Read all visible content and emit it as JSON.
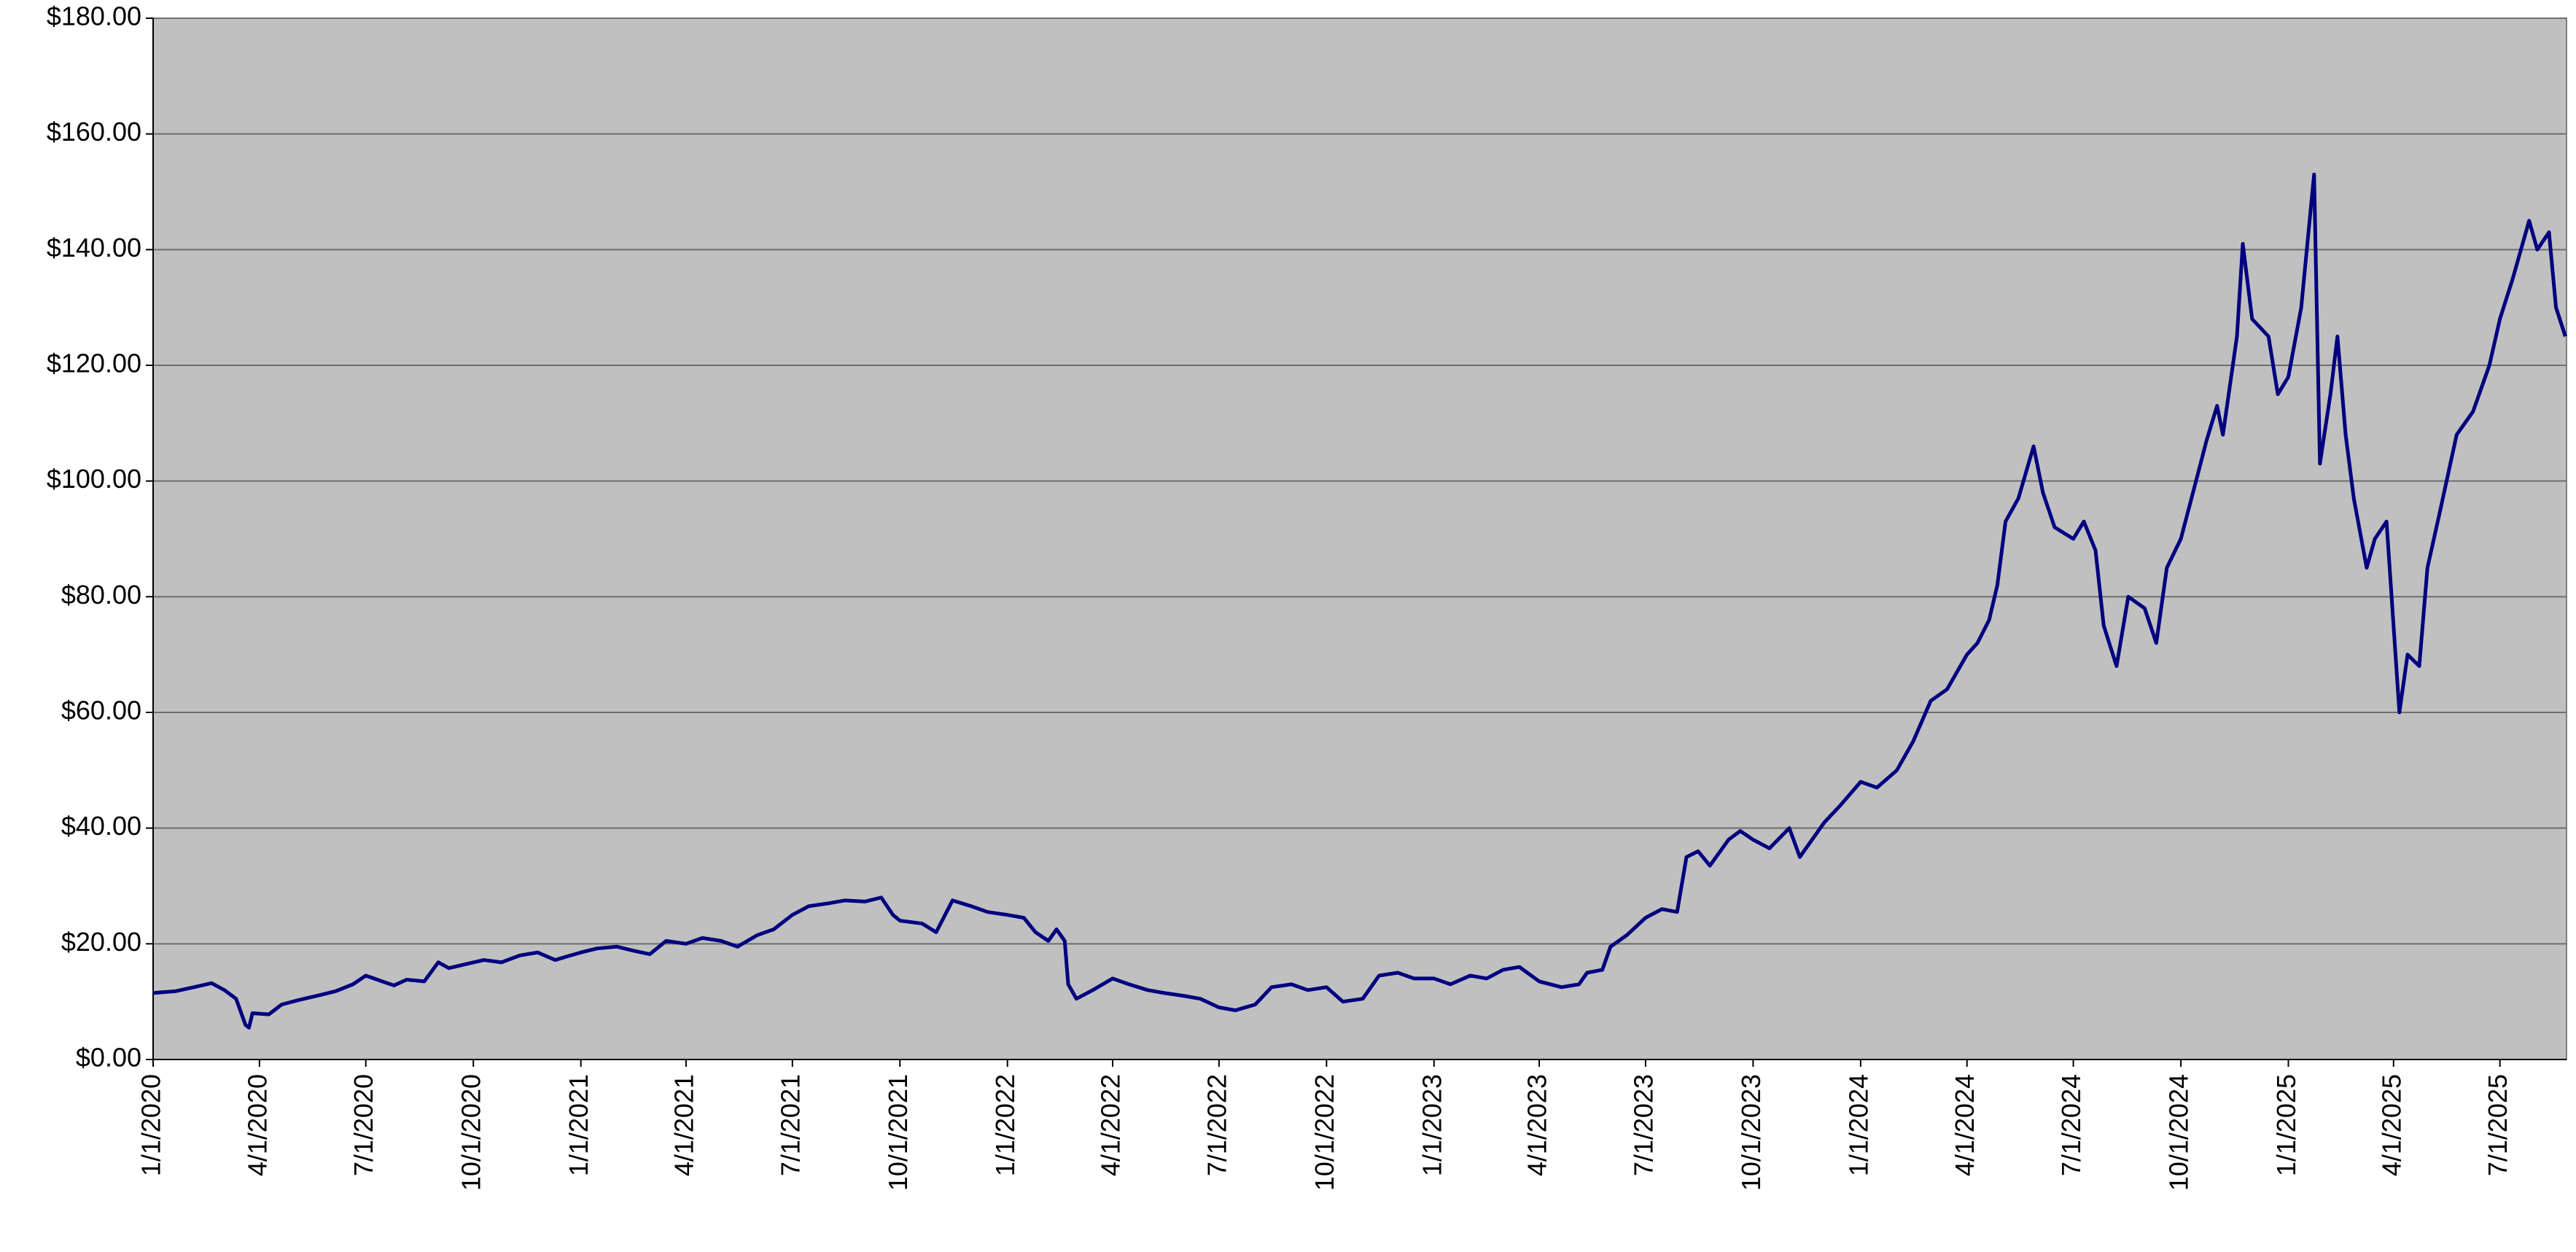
{
  "chart_data": {
    "type": "line",
    "grid": true,
    "x": [
      "1/1/2020",
      "1/20/2020",
      "2/5/2020",
      "2/20/2020",
      "3/2/2020",
      "3/12/2020",
      "3/20/2020",
      "3/23/2020",
      "3/26/2020",
      "4/9/2020",
      "4/20/2020",
      "5/5/2020",
      "5/20/2020",
      "6/5/2020",
      "6/20/2020",
      "7/1/2020",
      "7/15/2020",
      "7/25/2020",
      "8/5/2020",
      "8/20/2020",
      "9/1/2020",
      "9/10/2020",
      "9/25/2020",
      "10/10/2020",
      "10/25/2020",
      "11/10/2020",
      "11/25/2020",
      "12/10/2020",
      "12/20/2020",
      "1/1/2021",
      "1/15/2021",
      "2/1/2021",
      "2/15/2021",
      "3/1/2021",
      "3/15/2021",
      "4/1/2021",
      "4/15/2021",
      "5/1/2021",
      "5/15/2021",
      "6/1/2021",
      "6/15/2021",
      "7/1/2021",
      "7/15/2021",
      "8/1/2021",
      "8/15/2021",
      "9/1/2021",
      "9/15/2021",
      "9/25/2021",
      "10/1/2021",
      "10/20/2021",
      "11/1/2021",
      "11/15/2021",
      "12/1/2021",
      "12/15/2021",
      "1/1/2022",
      "1/15/2022",
      "1/25/2022",
      "2/5/2022",
      "2/12/2022",
      "2/19/2022",
      "2/22/2022",
      "3/1/2022",
      "3/15/2022",
      "4/1/2022",
      "4/15/2022",
      "5/1/2022",
      "5/15/2022",
      "6/1/2022",
      "6/15/2022",
      "7/1/2022",
      "7/15/2022",
      "8/1/2022",
      "8/15/2022",
      "9/1/2022",
      "9/15/2022",
      "10/1/2022",
      "10/15/2022",
      "11/1/2022",
      "11/15/2022",
      "12/1/2022",
      "12/15/2022",
      "1/1/2023",
      "1/15/2023",
      "2/1/2023",
      "2/15/2023",
      "3/1/2023",
      "3/15/2023",
      "4/1/2023",
      "4/20/2023",
      "5/5/2023",
      "5/12/2023",
      "5/25/2023",
      "6/1/2023",
      "6/15/2023",
      "7/1/2023",
      "7/15/2023",
      "7/28/2023",
      "8/5/2023",
      "8/15/2023",
      "8/25/2023",
      "9/10/2023",
      "9/20/2023",
      "10/1/2023",
      "10/15/2023",
      "11/1/2023",
      "11/10/2023",
      "12/1/2023",
      "12/15/2023",
      "1/1/2024",
      "1/15/2024",
      "2/1/2024",
      "2/15/2024",
      "3/1/2024",
      "3/15/2024",
      "4/1/2024",
      "4/10/2024",
      "4/20/2024",
      "4/27/2024",
      "5/4/2024",
      "5/15/2024",
      "5/28/2024",
      "6/5/2024",
      "6/15/2024",
      "7/1/2024",
      "7/10/2024",
      "7/20/2024",
      "7/27/2024",
      "8/7/2024",
      "8/17/2024",
      "8/31/2024",
      "9/10/2024",
      "9/19/2024",
      "10/1/2024",
      "10/14/2024",
      "10/23/2024",
      "11/1/2024",
      "11/6/2024",
      "11/18/2024",
      "11/23/2024",
      "12/1/2024",
      "12/15/2024",
      "12/23/2024",
      "1/1/2025",
      "1/12/2025",
      "1/23/2025",
      "1/28/2025",
      "2/6/2025",
      "2/12/2025",
      "2/19/2025",
      "2/26/2025",
      "3/9/2025",
      "3/16/2025",
      "3/26/2025",
      "4/2/2025",
      "4/6/2025",
      "4/13/2025",
      "4/23/2025",
      "4/30/2025",
      "5/11/2025",
      "5/25/2025",
      "6/8/2025",
      "6/22/2025",
      "7/1/2025",
      "7/12/2025",
      "7/26/2025",
      "8/2/2025",
      "8/12/2025",
      "8/18/2025",
      "8/26/2025"
    ],
    "series": [
      {
        "color": "#000080",
        "values": [
          11.5,
          11.8,
          12.5,
          13.2,
          12.0,
          10.5,
          6.0,
          5.5,
          8.0,
          7.8,
          9.5,
          10.3,
          11.0,
          11.8,
          13.0,
          14.5,
          13.5,
          12.8,
          13.8,
          13.5,
          16.8,
          15.8,
          16.5,
          17.2,
          16.8,
          18.0,
          18.5,
          17.2,
          17.8,
          18.5,
          19.2,
          19.5,
          18.8,
          18.2,
          20.5,
          20.0,
          21.0,
          20.5,
          19.5,
          21.5,
          22.5,
          25.0,
          26.5,
          27.0,
          27.5,
          27.3,
          28.0,
          25.0,
          24.0,
          23.5,
          22.0,
          27.5,
          26.5,
          25.5,
          25.0,
          24.5,
          22.0,
          20.5,
          22.5,
          20.5,
          13.0,
          10.5,
          12.0,
          14.0,
          13.0,
          12.0,
          11.5,
          11.0,
          10.5,
          9.0,
          8.5,
          9.5,
          12.5,
          13.0,
          12.0,
          12.5,
          10.0,
          10.5,
          14.5,
          15.0,
          14.0,
          14.0,
          13.0,
          14.5,
          14.0,
          15.5,
          16.0,
          13.5,
          12.5,
          13.0,
          15.0,
          15.5,
          19.5,
          21.5,
          24.5,
          26.0,
          25.5,
          35.0,
          36.0,
          33.5,
          38.0,
          39.5,
          38.0,
          36.5,
          40.0,
          35.0,
          41.0,
          44.0,
          48,
          47,
          50,
          55,
          62,
          64,
          70,
          72,
          76,
          82,
          93,
          97,
          106,
          98,
          92,
          90,
          93,
          88,
          75,
          68,
          80,
          78,
          72,
          85,
          90,
          100,
          107,
          113,
          108,
          125,
          141,
          128,
          125,
          115,
          118,
          130,
          153,
          103,
          115,
          125,
          108,
          97,
          85,
          90,
          93,
          72,
          60,
          70,
          68,
          85,
          95,
          108,
          112,
          120,
          128,
          135,
          145,
          140,
          143,
          130,
          125
        ]
      }
    ],
    "xlim": [
      "1/1/2020",
      "8/27/2025"
    ],
    "xticks": [
      "1/1/2020",
      "4/1/2020",
      "7/1/2020",
      "10/1/2020",
      "1/1/2021",
      "4/1/2021",
      "7/1/2021",
      "10/1/2021",
      "1/1/2022",
      "4/1/2022",
      "7/1/2022",
      "10/1/2022",
      "1/1/2023",
      "4/1/2023",
      "7/1/2023",
      "10/1/2023",
      "1/1/2024",
      "4/1/2024",
      "7/1/2024",
      "10/1/2024",
      "1/1/2025",
      "4/1/2025",
      "7/1/2025"
    ],
    "ylim": [
      0,
      180
    ],
    "yticks": [
      {
        "value": 0,
        "label": "$0.00"
      },
      {
        "value": 20,
        "label": "$20.00"
      },
      {
        "value": 40,
        "label": "$40.00"
      },
      {
        "value": 60,
        "label": "$60.00"
      },
      {
        "value": 80,
        "label": "$80.00"
      },
      {
        "value": 100,
        "label": "$100.00"
      },
      {
        "value": 120,
        "label": "$120.00"
      },
      {
        "value": 140,
        "label": "$140.00"
      },
      {
        "value": 160,
        "label": "$160.00"
      },
      {
        "value": 180,
        "label": "$180.00"
      }
    ]
  }
}
